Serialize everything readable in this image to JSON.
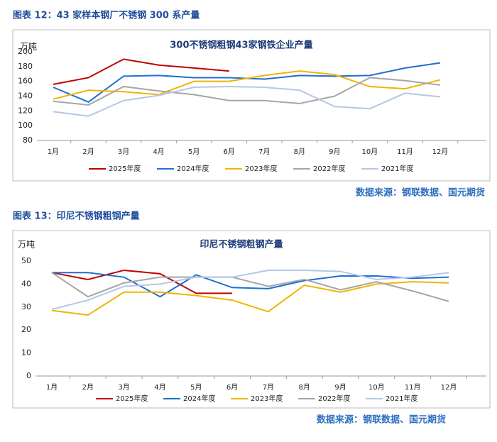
{
  "captions": [
    "图表 12：43 家样本钢厂不锈钢 300 系产量",
    "图表 13：印尼不锈钢粗钢产量"
  ],
  "sources": [
    "数据来源：钢联数据、国元期货",
    "数据来源：钢联数据、国元期货"
  ],
  "chart_data": [
    {
      "type": "line",
      "title": "300不锈钢粗钢43家钢铁企业产量",
      "y_label": "万吨",
      "categories": [
        "1月",
        "2月",
        "3月",
        "4月",
        "5月",
        "6月",
        "7月",
        "8月",
        "9月",
        "10月",
        "11月",
        "12月"
      ],
      "ylim": [
        80,
        200
      ],
      "yticks": [
        80,
        100,
        120,
        140,
        160,
        180,
        200
      ],
      "grid": false,
      "series": [
        {
          "name": "2025年度",
          "color": "#c00000",
          "values": [
            156,
            165,
            190,
            182,
            178,
            174,
            null,
            null,
            null,
            null,
            null,
            null
          ]
        },
        {
          "name": "2024年度",
          "color": "#1f6fd1",
          "values": [
            152,
            132,
            167,
            168,
            165,
            165,
            163,
            168,
            167,
            168,
            178,
            185
          ]
        },
        {
          "name": "2023年度",
          "color": "#f0b400",
          "values": [
            136,
            148,
            146,
            142,
            160,
            160,
            168,
            174,
            169,
            153,
            150,
            162
          ]
        },
        {
          "name": "2022年度",
          "color": "#a6a6a6",
          "values": [
            133,
            128,
            153,
            147,
            142,
            134,
            134,
            130,
            140,
            165,
            161,
            155
          ]
        },
        {
          "name": "2021年度",
          "color": "#b4c7e7",
          "values": [
            119,
            113,
            134,
            141,
            152,
            153,
            152,
            148,
            126,
            123,
            144,
            139
          ]
        }
      ]
    },
    {
      "type": "line",
      "title": "印尼不锈钢粗钢产量",
      "y_label": "万吨",
      "categories": [
        "1月",
        "2月",
        "3月",
        "4月",
        "5月",
        "6月",
        "7月",
        "8月",
        "9月",
        "10月",
        "11月",
        "12月"
      ],
      "ylim": [
        0,
        50
      ],
      "yticks": [
        0,
        10,
        20,
        30,
        40,
        50
      ],
      "grid": false,
      "series": [
        {
          "name": "2025年度",
          "color": "#c00000",
          "values": [
            45,
            42,
            46,
            44.5,
            36,
            36,
            null,
            null,
            null,
            null,
            null,
            null
          ]
        },
        {
          "name": "2024年度",
          "color": "#1f6fd1",
          "values": [
            45,
            45,
            43,
            34.5,
            44,
            38.5,
            38,
            41.5,
            43.5,
            43.5,
            42.5,
            43
          ]
        },
        {
          "name": "2023年度",
          "color": "#f0b400",
          "values": [
            28.5,
            26.5,
            36.5,
            36.5,
            35,
            33,
            28,
            39.5,
            36.5,
            40,
            41,
            40.5
          ]
        },
        {
          "name": "2022年度",
          "color": "#a6a6a6",
          "values": [
            45,
            34.5,
            40.5,
            43,
            43,
            43,
            39,
            42,
            37.5,
            41,
            37,
            32.5
          ]
        },
        {
          "name": "2021年度",
          "color": "#b4c7e7",
          "values": [
            29,
            33,
            39,
            40,
            43,
            43,
            46,
            46,
            45.5,
            42,
            43,
            45
          ]
        }
      ]
    }
  ]
}
